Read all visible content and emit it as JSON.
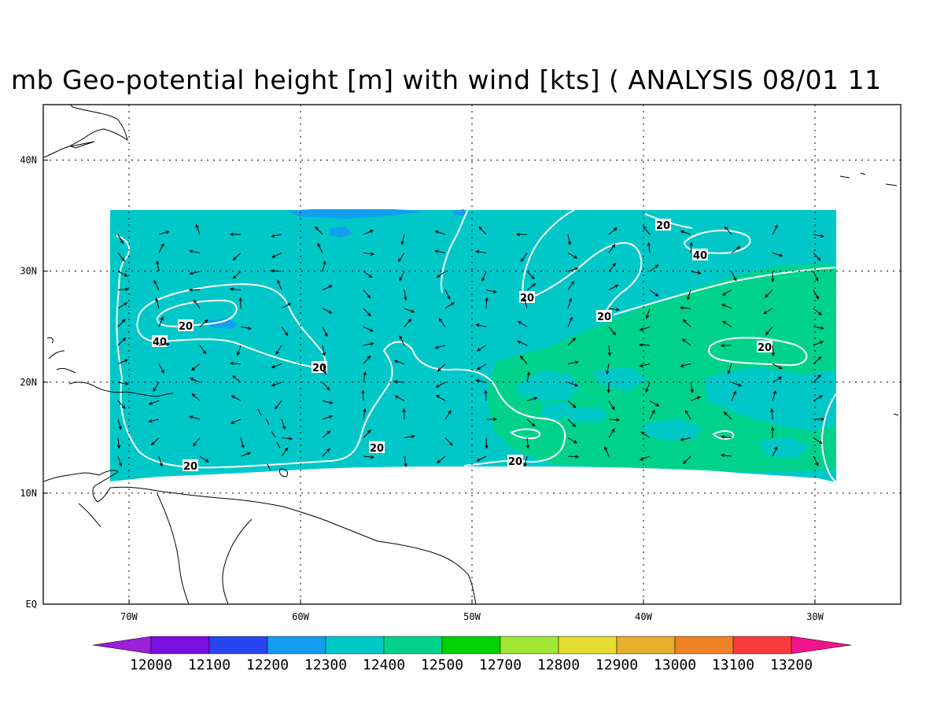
{
  "title": "mb Geo-potential height [m] with wind [kts] ( ANALYSIS 08/01 11",
  "axes": {
    "x_ticks": [
      {
        "label": "70W",
        "lon": -70
      },
      {
        "label": "60W",
        "lon": -60
      },
      {
        "label": "50W",
        "lon": -50
      },
      {
        "label": "40W",
        "lon": -40
      },
      {
        "label": "30W",
        "lon": -30
      }
    ],
    "y_ticks": [
      {
        "label": "EQ",
        "lat": 0
      },
      {
        "label": "10N",
        "lat": 10
      },
      {
        "label": "20N",
        "lat": 20
      },
      {
        "label": "30N",
        "lat": 30
      },
      {
        "label": "40N",
        "lat": 40
      }
    ],
    "lon_range": [
      -75,
      -25
    ],
    "lat_range": [
      0,
      45
    ],
    "grid": "dotted"
  },
  "colorbar": {
    "labels": [
      "12000",
      "12100",
      "12200",
      "12300",
      "12400",
      "12500",
      "12700",
      "12800",
      "12900",
      "13000",
      "13100",
      "13200"
    ],
    "colors": [
      "#9a1fd6",
      "#7b10e0",
      "#2a45f0",
      "#129ff0",
      "#00c8c8",
      "#00d28c",
      "#00d200",
      "#a0e632",
      "#e6dc32",
      "#e6af2d",
      "#f08228",
      "#fa3c3c",
      "#f0148c"
    ]
  },
  "wind_speed_contours": {
    "labels": [
      "20",
      "40",
      "20",
      "20",
      "20",
      "20",
      "20",
      "20",
      "20",
      "40",
      "20"
    ]
  }
}
